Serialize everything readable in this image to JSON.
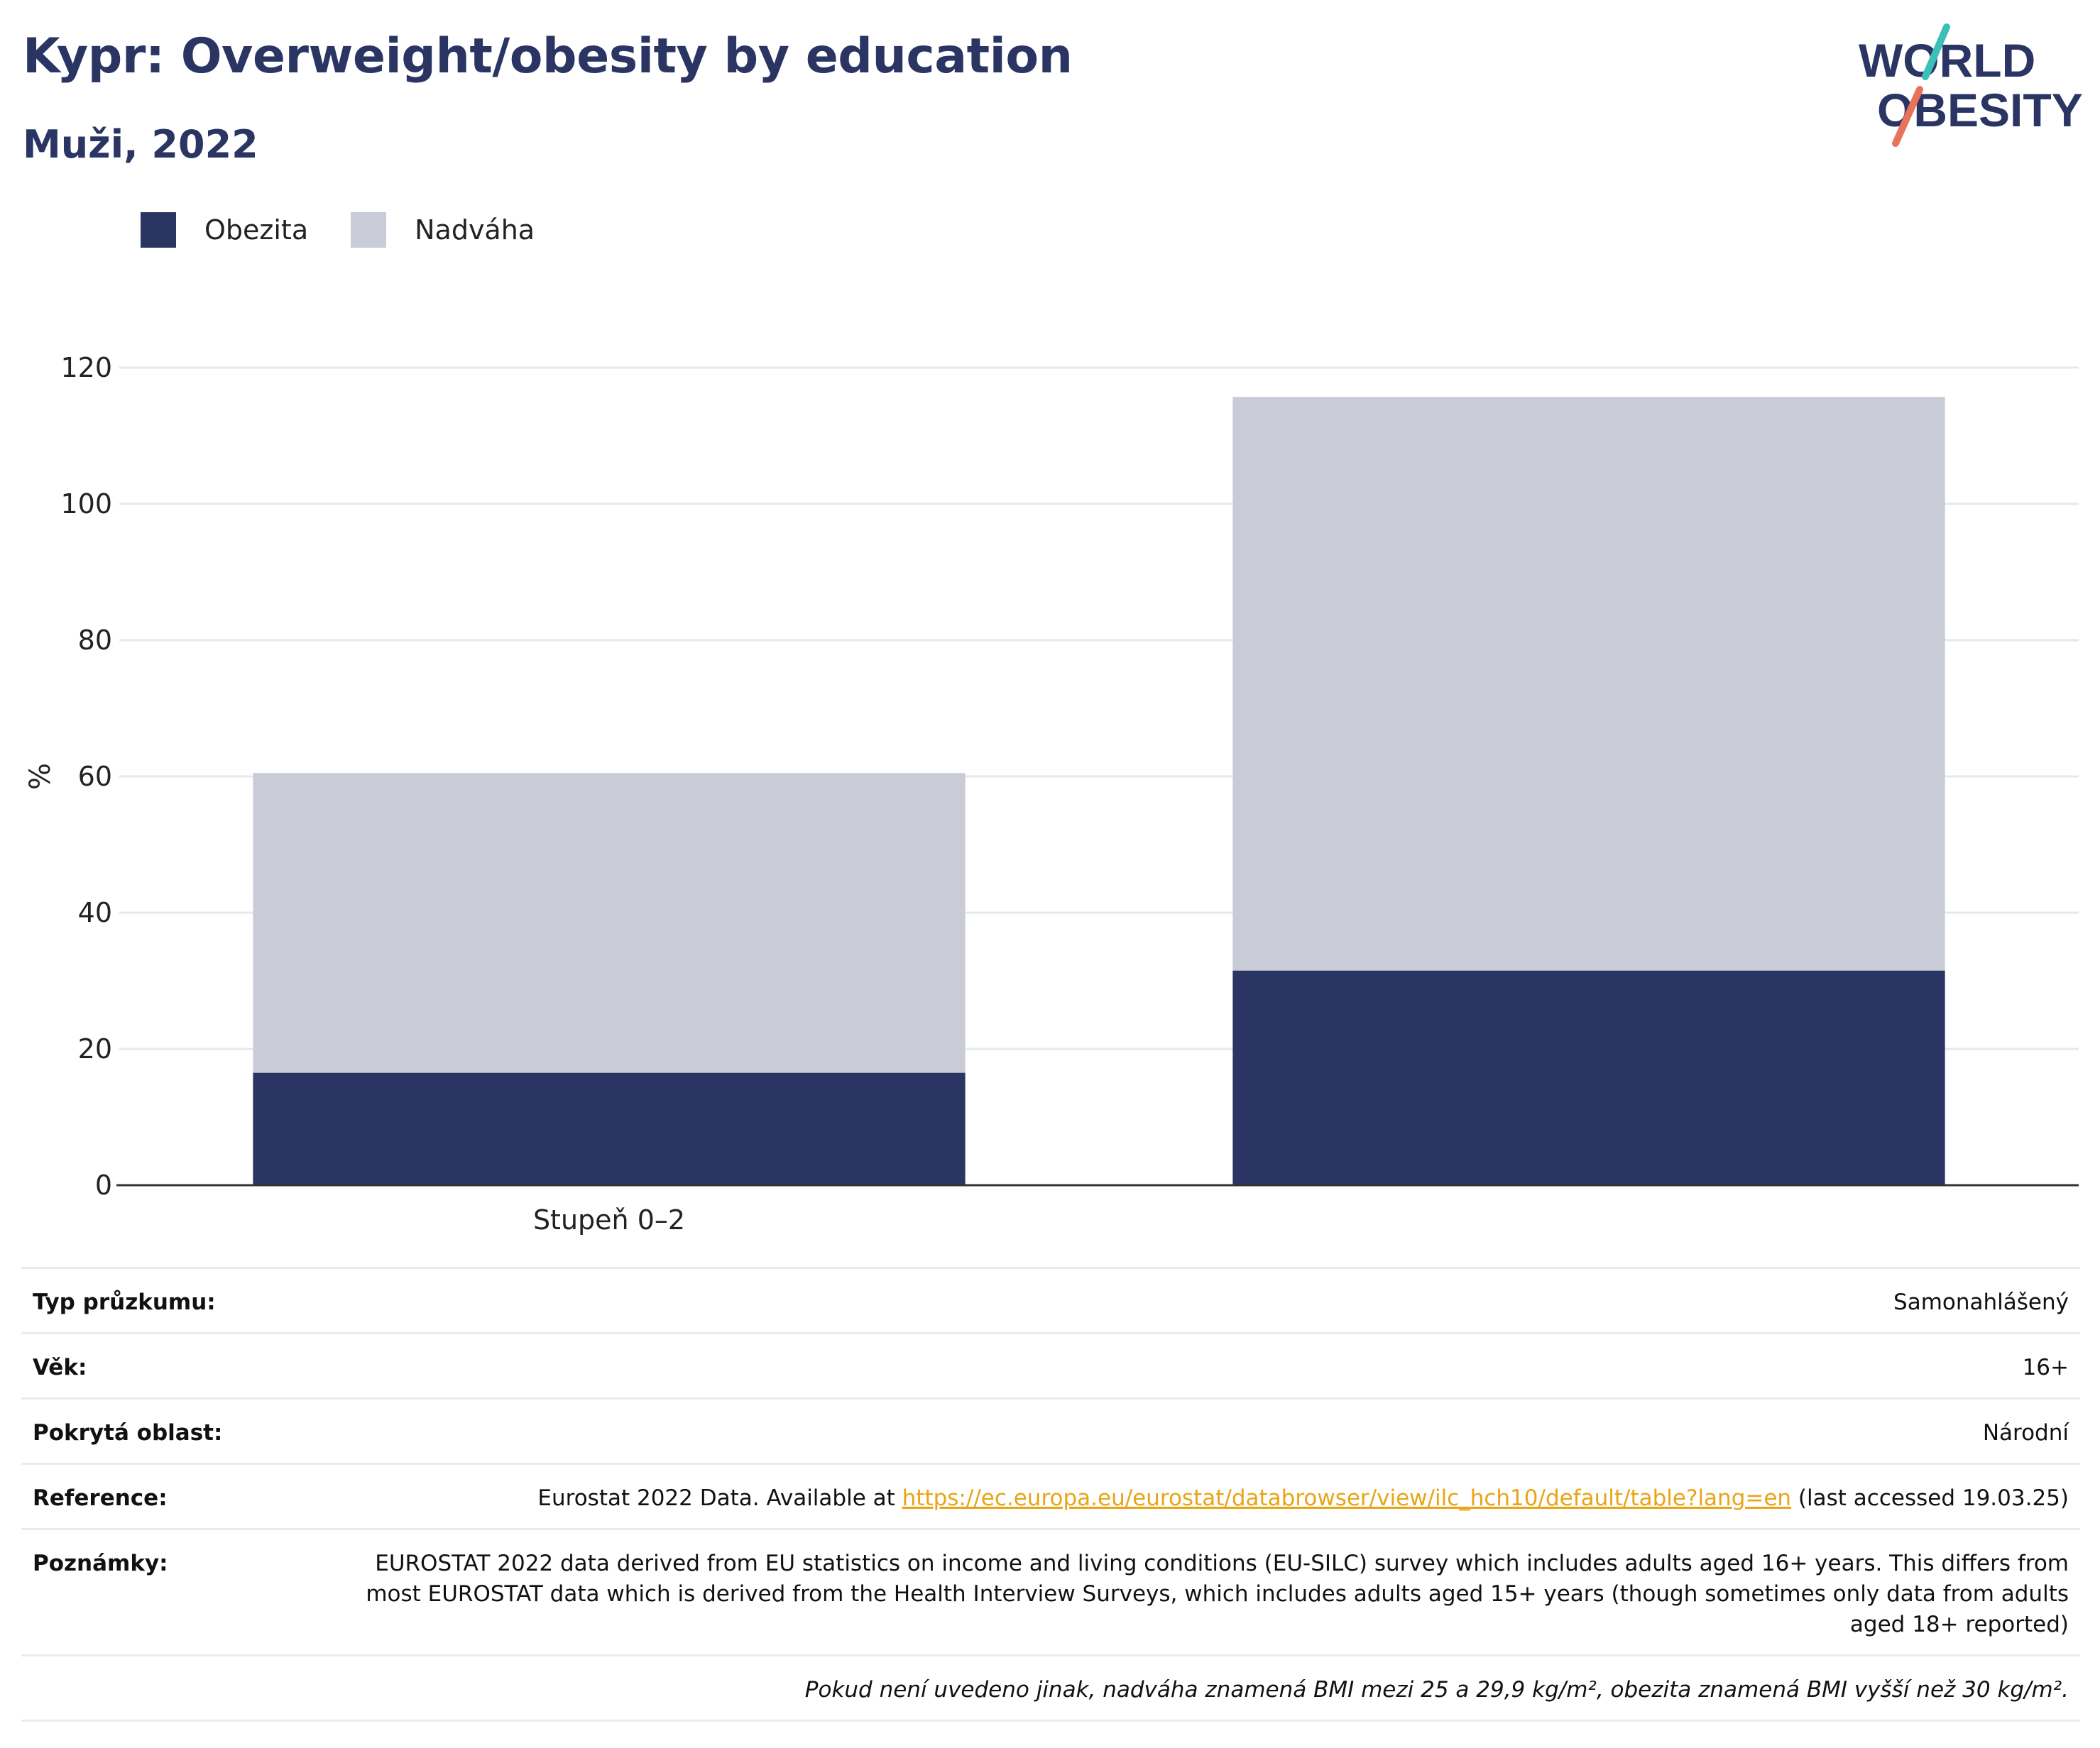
{
  "header": {
    "title": "Kypr: Overweight/obesity by education",
    "subtitle": "Muži, 2022"
  },
  "logo": {
    "line1": "WORLD",
    "line2": "OBESITY",
    "colors": {
      "text": "#2a3563",
      "accent_teal": "#3bbfb8",
      "accent_coral": "#e8735a"
    }
  },
  "colors": {
    "obesity": "#2a3563",
    "overweight": "#c9ccd7",
    "title": "#2a3563",
    "gridline": "#e6e8ee",
    "axis": "#333333",
    "link": "#e8a517"
  },
  "legend": [
    {
      "label": "Obezita",
      "color": "#2a3563"
    },
    {
      "label": "Nadváha",
      "color": "#c9ccd7"
    }
  ],
  "chart_data": {
    "type": "bar",
    "stacked": true,
    "categories": [
      "Stupeň 0–2",
      ""
    ],
    "series": [
      {
        "name": "Obezita",
        "values": [
          16.5,
          31.5
        ]
      },
      {
        "name": "Nadváha",
        "values": [
          44.0,
          84.2
        ]
      }
    ],
    "ylabel": "%",
    "xlabel": "",
    "ylim": [
      0,
      120
    ],
    "yticks": [
      0,
      20,
      40,
      60,
      80,
      100,
      120
    ],
    "grid": true,
    "legend_position": "top-left"
  },
  "info": {
    "survey_type": {
      "label": "Typ průzkumu:",
      "value": "Samonahlášený"
    },
    "age": {
      "label": "Věk:",
      "value": "16+"
    },
    "area": {
      "label": "Pokrytá oblast:",
      "value": "Národní"
    },
    "reference": {
      "label": "Reference:",
      "before": "Eurostat 2022 Data. Available at ",
      "link": "https://ec.europa.eu/eurostat/databrowser/view/ilc_hch10/default/table?lang=en",
      "after": " (last accessed 19.03.25)"
    },
    "notes": {
      "label": "Poznámky:",
      "value": "EUROSTAT 2022 data derived from EU statistics on income and living conditions (EU-SILC) survey which includes adults aged 16+ years. This differs from most EUROSTAT data which is derived from the Health Interview Surveys, which includes adults aged 15+ years (though sometimes only data from adults aged 18+ reported)"
    },
    "footnote": "Pokud není uvedeno jinak, nadváha znamená BMI mezi 25 a 29,9 kg/m², obezita znamená BMI vyšší než 30 kg/m²."
  }
}
